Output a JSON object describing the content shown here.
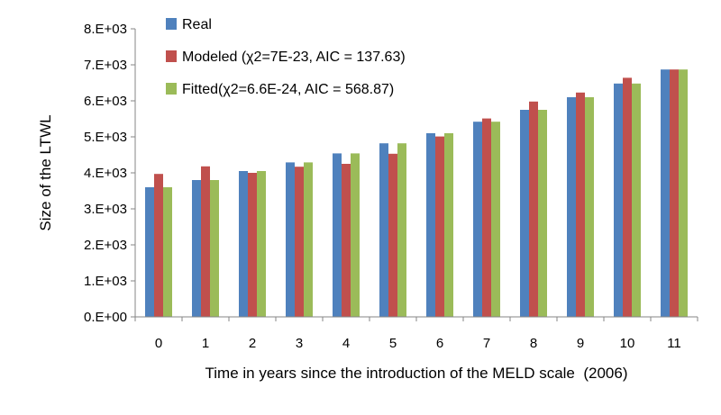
{
  "chart_data": {
    "type": "bar",
    "title": "",
    "xlabel": "Time in years since the introduction of the MELD scale  (2006)",
    "ylabel": "Size of the LTWL",
    "categories": [
      "0",
      "1",
      "2",
      "3",
      "4",
      "5",
      "6",
      "7",
      "8",
      "9",
      "10",
      "11"
    ],
    "y_ticks": [
      "0.E+00",
      "1.E+03",
      "2.E+03",
      "3.E+03",
      "4.E+03",
      "5.E+03",
      "6.E+03",
      "7.E+03",
      "8.E+03"
    ],
    "ylim": [
      0,
      8000
    ],
    "grid": false,
    "legend_position": "top-left",
    "series": [
      {
        "name": "Real",
        "color": "#4f81bd",
        "values": [
          3600,
          3800,
          4050,
          4290,
          4540,
          4820,
          5100,
          5420,
          5750,
          6100,
          6480,
          6870
        ]
      },
      {
        "name": "Modeled (χ2=7E-23, AIC = 137.63)",
        "color": "#c0504d",
        "values": [
          3970,
          4180,
          4000,
          4170,
          4250,
          4530,
          5010,
          5510,
          5980,
          6230,
          6640,
          6870
        ]
      },
      {
        "name": "Fitted(χ2=6.6E-24, AIC = 568.87)",
        "color": "#9bbb59",
        "values": [
          3600,
          3800,
          4050,
          4290,
          4540,
          4820,
          5100,
          5420,
          5750,
          6100,
          6480,
          6870
        ]
      }
    ]
  }
}
